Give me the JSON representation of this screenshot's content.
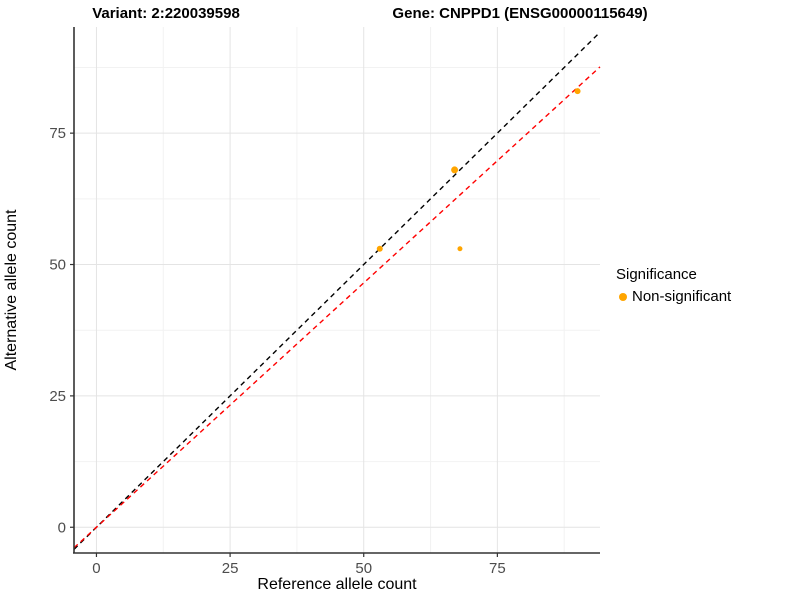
{
  "chart_data": {
    "type": "scatter",
    "title_left": "Variant: 2:220039598",
    "title_right": "Gene: CNPPD1 (ENSG00000115649)",
    "xlabel": "Reference allele count",
    "ylabel": "Alternative allele count",
    "xlim": [
      -4.2,
      94.2
    ],
    "ylim": [
      -4.9,
      95.2
    ],
    "x_major_ticks": [
      0,
      25,
      50,
      75
    ],
    "y_major_ticks": [
      0,
      25,
      50,
      75
    ],
    "x_minor_ticks": [
      12.5,
      37.5,
      62.5,
      87.5
    ],
    "y_minor_ticks": [
      12.5,
      37.5,
      62.5,
      87.5
    ],
    "grid": true,
    "legend_position": "right",
    "points": [
      {
        "x": 53,
        "y": 53,
        "r": 3.0
      },
      {
        "x": 67,
        "y": 68,
        "r": 3.5
      },
      {
        "x": 68,
        "y": 53,
        "r": 2.5
      },
      {
        "x": 90,
        "y": 83,
        "r": 3.0
      }
    ],
    "point_color": "#FFA500",
    "lines": [
      {
        "name": "identity-line",
        "slope": 1.0,
        "intercept": 0,
        "color": "#000000",
        "dash": "5,4"
      },
      {
        "name": "fit-line",
        "slope": 0.93,
        "intercept": 0,
        "color": "#FF0000",
        "dash": "5,4"
      }
    ],
    "legend": {
      "title": "Significance",
      "items": [
        {
          "label": "Non-significant",
          "color": "#FFA500"
        }
      ]
    },
    "style": {
      "major_grid_color": "#E4E4E4",
      "minor_grid_color": "#F2F2F2",
      "axis_line_color": "#333333",
      "tick_label_color": "#4D4D4D"
    }
  }
}
